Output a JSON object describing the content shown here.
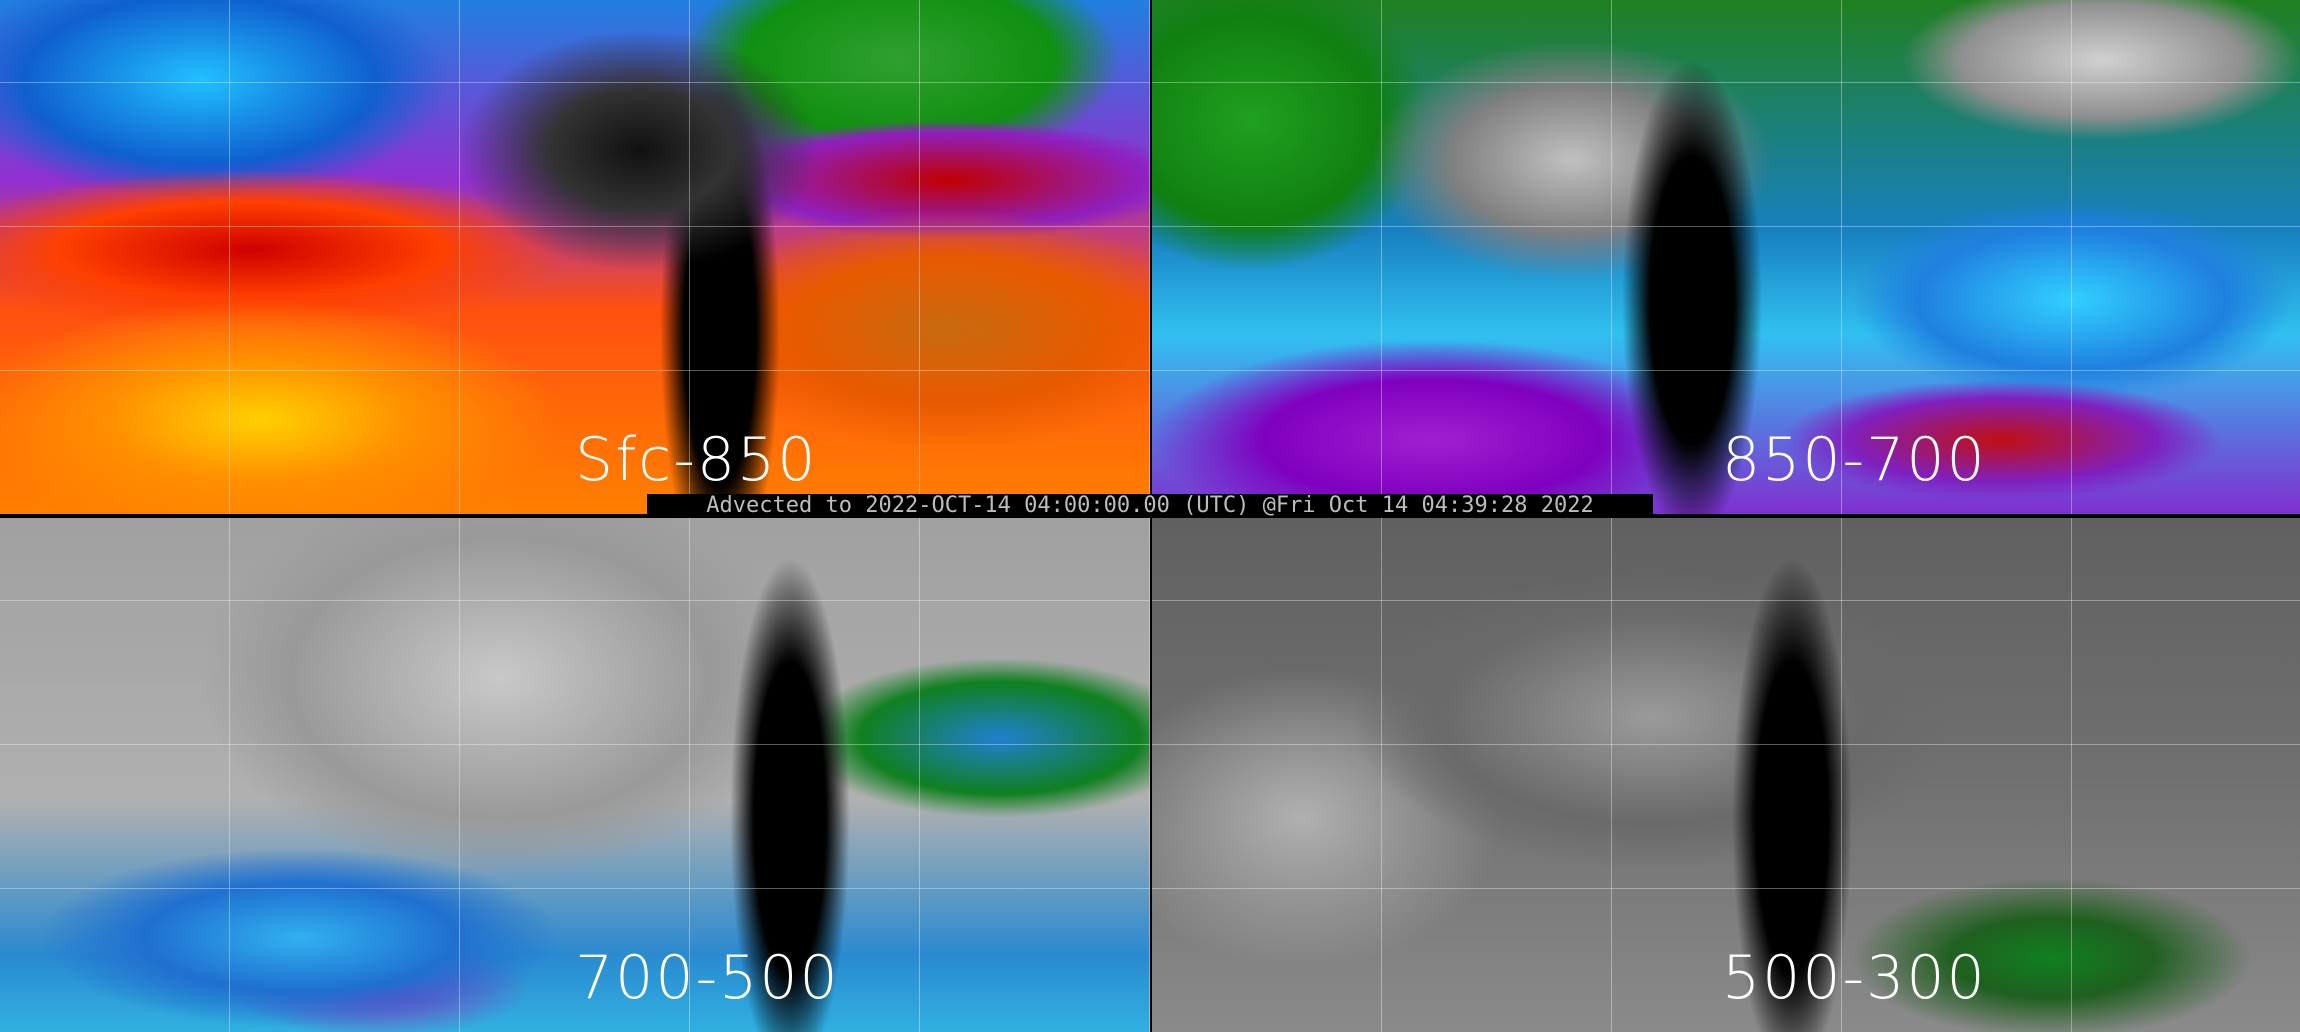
{
  "panels": [
    {
      "label": "Sfc-850",
      "colormap": "multicolor-red-yellow"
    },
    {
      "label": "850-700",
      "colormap": "multicolor-green-blue-purple"
    },
    {
      "label": "700-500",
      "colormap": "gray-green-blue"
    },
    {
      "label": "500-300",
      "colormap": "gray-green"
    }
  ],
  "caption": "Advected to 2022-OCT-14 04:00:00.00 (UTC) @Fri Oct 14 04:39:28 2022"
}
